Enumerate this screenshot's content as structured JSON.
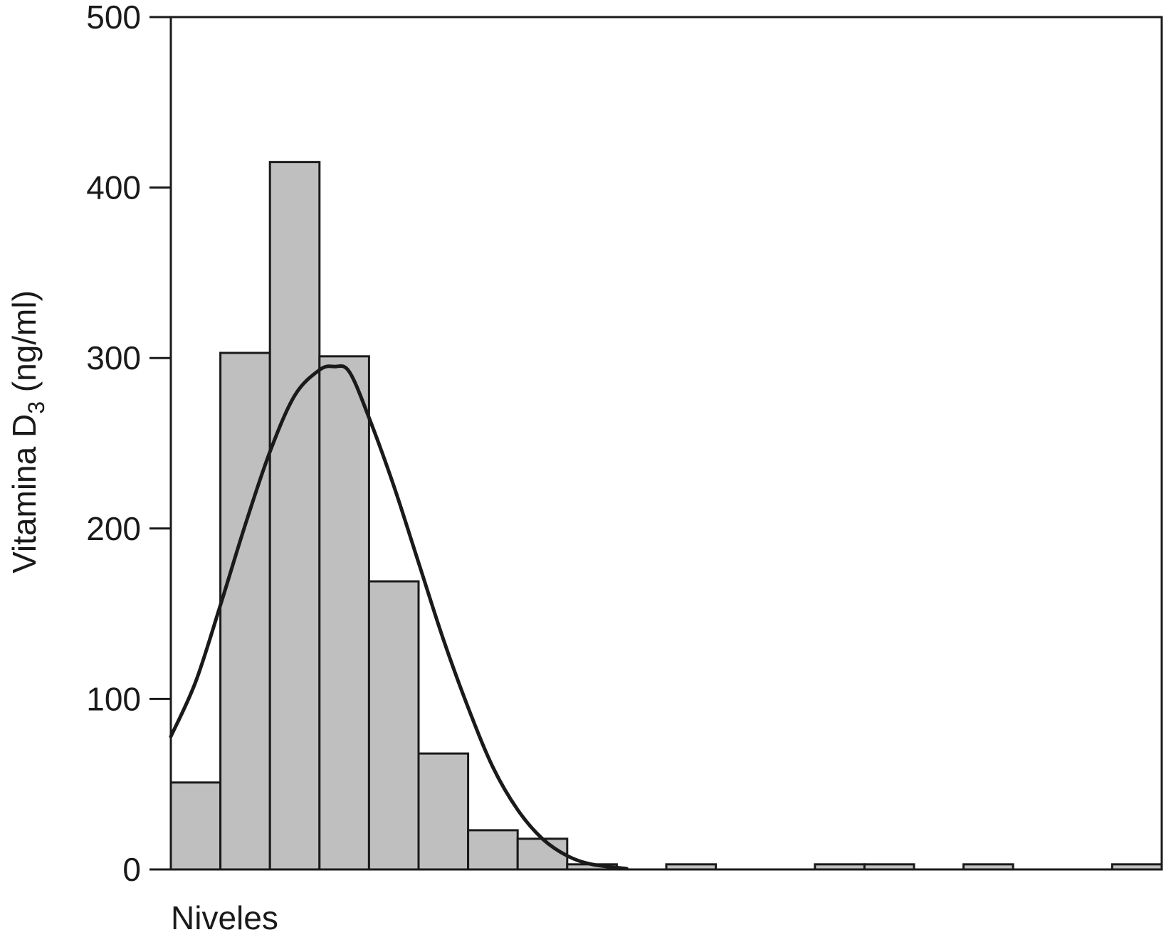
{
  "chart_data": {
    "type": "bar",
    "subtype": "histogram-with-density-curve",
    "xlabel": "Niveles",
    "ylabel": {
      "main": "Vitamina D",
      "subscript": "3",
      "unit": " (ng/ml)"
    },
    "ylim": [
      0,
      500
    ],
    "yticks": [
      "0",
      "100",
      "200",
      "300",
      "400",
      "500"
    ],
    "ytick_values": [
      0,
      100,
      200,
      300,
      400,
      500
    ],
    "grid": false,
    "legend": "none",
    "x_bins": 20,
    "bars": [
      {
        "bin": 0,
        "value": 51
      },
      {
        "bin": 1,
        "value": 303
      },
      {
        "bin": 2,
        "value": 415
      },
      {
        "bin": 3,
        "value": 301
      },
      {
        "bin": 4,
        "value": 169
      },
      {
        "bin": 5,
        "value": 68
      },
      {
        "bin": 6,
        "value": 23
      },
      {
        "bin": 7,
        "value": 18
      },
      {
        "bin": 8,
        "value": 3
      },
      {
        "bin": 10,
        "value": 3
      },
      {
        "bin": 13,
        "value": 3
      },
      {
        "bin": 14,
        "value": 3
      },
      {
        "bin": 16,
        "value": 3
      },
      {
        "bin": 19,
        "value": 3
      }
    ],
    "curve": {
      "name": "",
      "points": [
        [
          0,
          78
        ],
        [
          0.5,
          110
        ],
        [
          1,
          155
        ],
        [
          1.5,
          202
        ],
        [
          2,
          245
        ],
        [
          2.5,
          278
        ],
        [
          3,
          293
        ],
        [
          3.3,
          295
        ],
        [
          3.6,
          292
        ],
        [
          4,
          265
        ],
        [
          4.5,
          225
        ],
        [
          5,
          180
        ],
        [
          5.5,
          135
        ],
        [
          6,
          95
        ],
        [
          6.5,
          60
        ],
        [
          7,
          35
        ],
        [
          7.5,
          18
        ],
        [
          8,
          8
        ],
        [
          8.5,
          3
        ],
        [
          9.2,
          0.5
        ]
      ]
    },
    "colors": {
      "bar_fill": "#bfbfbf",
      "bar_stroke": "#1a1a1a",
      "curve": "#1a1a1a",
      "axis": "#1a1a1a"
    }
  }
}
